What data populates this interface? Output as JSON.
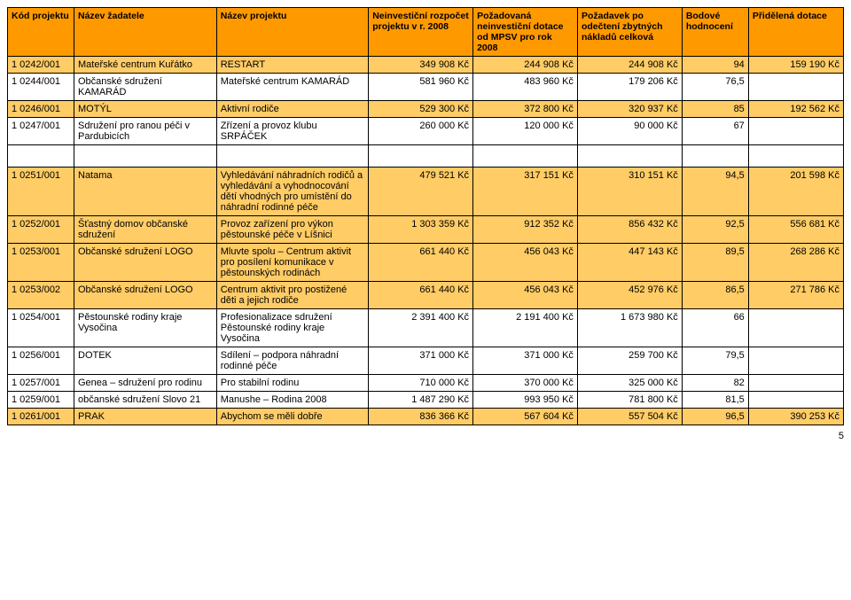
{
  "header": {
    "c1": "Kód projektu",
    "c2": "Název žadatele",
    "c3": "Název projektu",
    "c4": "Neinvestiční rozpočet projektu v r. 2008",
    "c5": "Požadovaná neinvestiční dotace od MPSV pro rok 2008",
    "c6": "Požadavek po odečtení zbytných nákladů celková",
    "c7": "Bodové hodnocení",
    "c8": "Přidělená dotace"
  },
  "rows": [
    {
      "cls": "orange",
      "c1": "1 0242/001",
      "c2": "Mateřské centrum Kuřátko",
      "c3": "RESTART",
      "c4": "349 908 Kč",
      "c5": "244 908 Kč",
      "c6": "244 908 Kč",
      "c7": "94",
      "c8": "159 190 Kč"
    },
    {
      "cls": "white",
      "c1": "1 0244/001",
      "c2": "Občanské sdružení KAMARÁD",
      "c3": "Mateřské centrum KAMARÁD",
      "c4": "581 960 Kč",
      "c5": "483 960 Kč",
      "c6": "179 206 Kč",
      "c7": "76,5",
      "c8": ""
    },
    {
      "cls": "orange",
      "c1": "1 0246/001",
      "c2": "MOTÝL",
      "c3": "Aktivní rodiče",
      "c4": "529 300 Kč",
      "c5": "372 800 Kč",
      "c6": "320 937 Kč",
      "c7": "85",
      "c8": "192 562 Kč"
    },
    {
      "cls": "white",
      "c1": "1 0247/001",
      "c2": "Sdružení pro ranou péči v Pardubicích",
      "c3": "Zřízení a provoz klubu SRPÁČEK",
      "c4": "260 000 Kč",
      "c5": "120 000 Kč",
      "c6": "90 000 Kč",
      "c7": "67",
      "c8": ""
    },
    {
      "cls": "orange",
      "c1": "1 0251/001",
      "c2": "Natama",
      "c3": "Vyhledávání náhradních rodičů a vyhledávání a vyhodnocování dětí vhodných pro umístění do náhradní rodinné péče",
      "c4": "479 521 Kč",
      "c5": "317 151 Kč",
      "c6": "310 151 Kč",
      "c7": "94,5",
      "c8": "201 598 Kč"
    },
    {
      "cls": "orange",
      "c1": "1 0252/001",
      "c2": "Šťastný domov občanské sdružení",
      "c3": "Provoz zařízení pro výkon pěstounské péče v Líšnici",
      "c4": "1 303 359 Kč",
      "c5": "912 352 Kč",
      "c6": "856 432 Kč",
      "c7": "92,5",
      "c8": "556 681 Kč"
    },
    {
      "cls": "orange",
      "c1": "1 0253/001",
      "c2": "Občanské sdružení LOGO",
      "c3": "Mluvte spolu – Centrum aktivit pro posílení komunikace v pěstounských rodinách",
      "c4": "661 440 Kč",
      "c5": "456 043 Kč",
      "c6": "447 143 Kč",
      "c7": "89,5",
      "c8": "268 286 Kč"
    },
    {
      "cls": "orange",
      "c1": "1 0253/002",
      "c2": "Občanské sdružení LOGO",
      "c3": "Centrum aktivit pro postižené děti a jejich rodiče",
      "c4": "661 440 Kč",
      "c5": "456 043 Kč",
      "c6": "452 976 Kč",
      "c7": "86,5",
      "c8": "271 786 Kč"
    },
    {
      "cls": "white",
      "c1": "1 0254/001",
      "c2": "Pěstounské rodiny kraje Vysočina",
      "c3": "Profesionalizace sdružení Pěstounské rodiny kraje Vysočina",
      "c4": "2 391 400 Kč",
      "c5": "2 191 400 Kč",
      "c6": "1 673 980 Kč",
      "c7": "66",
      "c8": ""
    },
    {
      "cls": "white",
      "c1": "1 0256/001",
      "c2": "DOTEK",
      "c3": "Sdílení – podpora náhradní rodinné péče",
      "c4": "371 000 Kč",
      "c5": "371 000 Kč",
      "c6": "259 700 Kč",
      "c7": "79,5",
      "c8": ""
    },
    {
      "cls": "white",
      "c1": "1 0257/001",
      "c2": "Genea – sdružení pro rodinu",
      "c3": "Pro stabilní rodinu",
      "c4": "710 000 Kč",
      "c5": "370 000 Kč",
      "c6": "325 000 Kč",
      "c7": "82",
      "c8": ""
    },
    {
      "cls": "white",
      "c1": "1 0259/001",
      "c2": "občanské sdružení Slovo 21",
      "c3": "Manushe – Rodina 2008",
      "c4": "1 487 290 Kč",
      "c5": "993 950 Kč",
      "c6": "781 800 Kč",
      "c7": "81,5",
      "c8": ""
    },
    {
      "cls": "orange",
      "c1": "1 0261/001",
      "c2": "PRAK",
      "c3": "Abychom se měli dobře",
      "c4": "836 366 Kč",
      "c5": "567 604 Kč",
      "c6": "557 504 Kč",
      "c7": "96,5",
      "c8": "390 253 Kč"
    }
  ],
  "page_number": "5",
  "colors": {
    "header_bg": "#ff9900",
    "highlight_bg": "#ffcc66",
    "border": "#000000",
    "text": "#000000"
  }
}
